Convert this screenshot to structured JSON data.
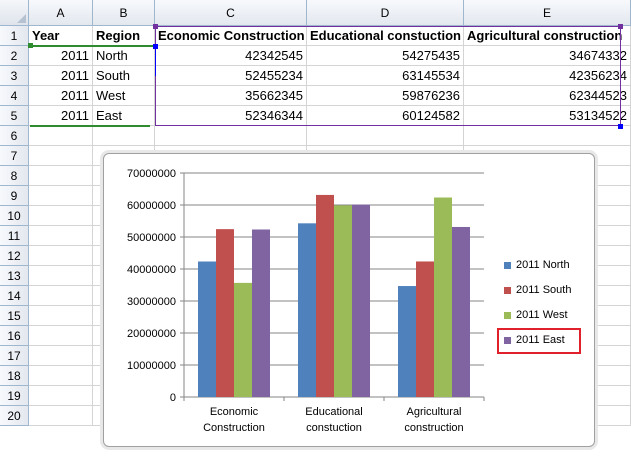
{
  "columns": [
    "A",
    "B",
    "C",
    "D",
    "E"
  ],
  "rows": [
    "1",
    "2",
    "3",
    "4",
    "5",
    "6",
    "7",
    "8",
    "9",
    "10",
    "11",
    "12",
    "13",
    "14",
    "15",
    "16",
    "17",
    "18",
    "19",
    "20"
  ],
  "table": {
    "header": [
      "Year",
      "Region",
      "Economic Construction",
      "Educational constuction",
      "Agricultural construction"
    ],
    "data": [
      [
        "2011",
        "North",
        "42342545",
        "54275435",
        "34674332"
      ],
      [
        "2011",
        "South",
        "52455234",
        "63145534",
        "42356234"
      ],
      [
        "2011",
        "West",
        "35662345",
        "59876236",
        "62344523"
      ],
      [
        "2011",
        "East",
        "52346344",
        "60124582",
        "53134522"
      ]
    ]
  },
  "colors": {
    "north": "#4f81bd",
    "south": "#c0504d",
    "west": "#9bbb59",
    "east": "#8064a2",
    "highlight": "#e0202a"
  },
  "chart_data": {
    "type": "bar",
    "categories": [
      "Economic Construction",
      "Educational constuction",
      "Agricultural construction"
    ],
    "category_lines": [
      [
        "Economic",
        "Construction"
      ],
      [
        "Educational",
        "constuction"
      ],
      [
        "Agricultural",
        "construction"
      ]
    ],
    "series": [
      {
        "name": "2011 North",
        "values": [
          42342545,
          54275435,
          34674332
        ]
      },
      {
        "name": "2011 South",
        "values": [
          52455234,
          63145534,
          42356234
        ]
      },
      {
        "name": "2011 West",
        "values": [
          35662345,
          59876236,
          62344523
        ]
      },
      {
        "name": "2011 East",
        "values": [
          52346344,
          60124582,
          53134522
        ]
      }
    ],
    "ylim": [
      0,
      70000000
    ],
    "yticks": [
      "0",
      "10000000",
      "20000000",
      "30000000",
      "40000000",
      "50000000",
      "60000000",
      "70000000"
    ],
    "grid": true,
    "legend": "right",
    "highlighted_legend": "2011 East"
  }
}
